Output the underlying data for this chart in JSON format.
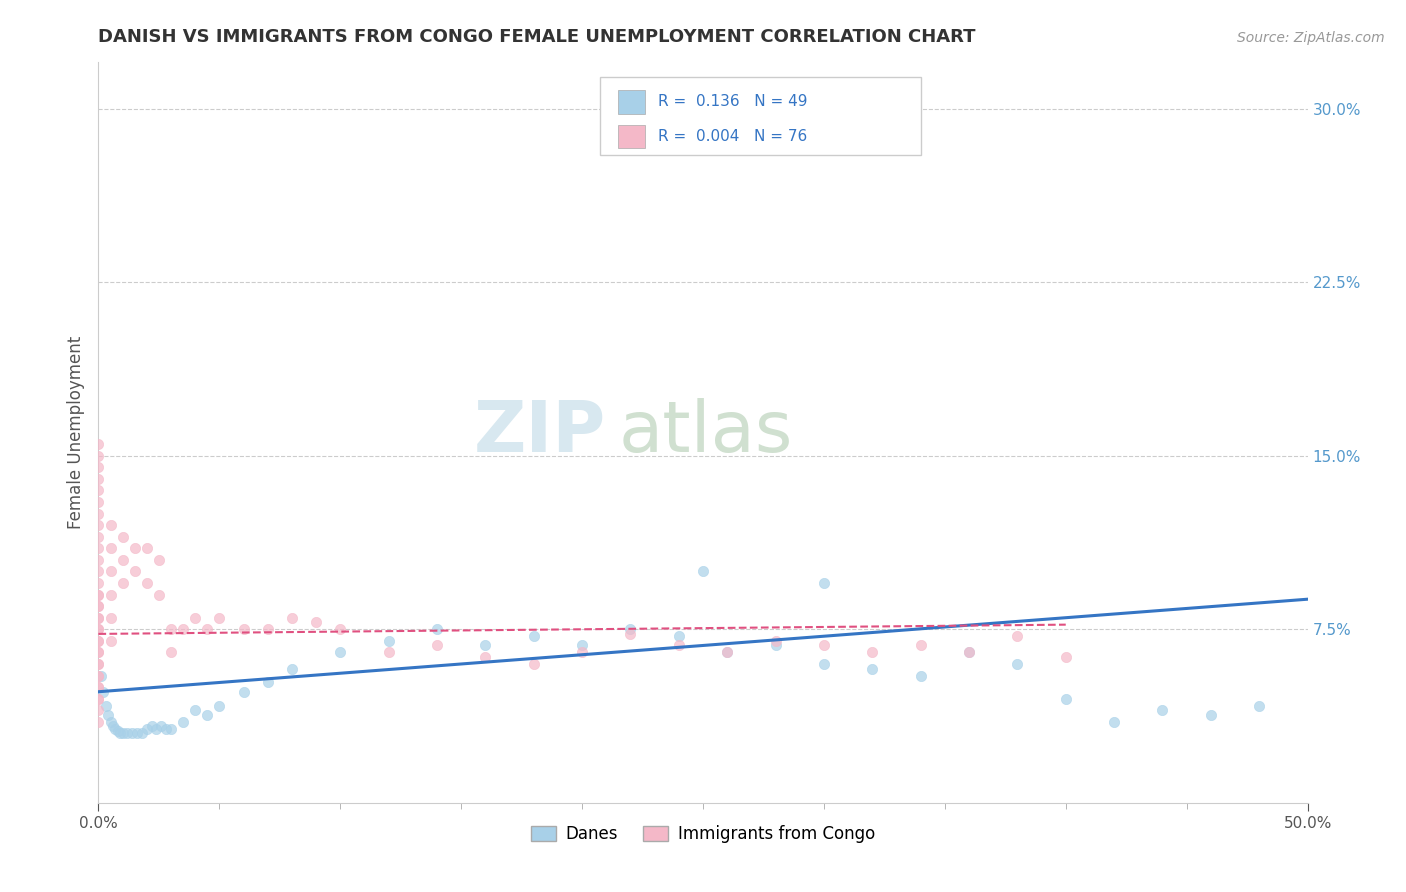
{
  "title": "DANISH VS IMMIGRANTS FROM CONGO FEMALE UNEMPLOYMENT CORRELATION CHART",
  "source": "Source: ZipAtlas.com",
  "ylabel": "Female Unemployment",
  "xlim": [
    0.0,
    0.5
  ],
  "ylim": [
    0.0,
    0.32
  ],
  "ytick_right_labels": [
    "7.5%",
    "15.0%",
    "22.5%",
    "30.0%"
  ],
  "ytick_right_values": [
    0.075,
    0.15,
    0.225,
    0.3
  ],
  "danes_R": "0.136",
  "danes_N": "49",
  "congo_R": "0.004",
  "congo_N": "76",
  "danes_color": "#a8d0e8",
  "congo_color": "#f4b8c8",
  "danes_line_color": "#3575c4",
  "congo_line_color": "#e05080",
  "background_color": "#ffffff",
  "grid_color": "#cccccc",
  "danes_x": [
    0.001,
    0.002,
    0.003,
    0.004,
    0.005,
    0.006,
    0.007,
    0.008,
    0.009,
    0.01,
    0.012,
    0.014,
    0.016,
    0.018,
    0.02,
    0.022,
    0.024,
    0.026,
    0.028,
    0.03,
    0.035,
    0.04,
    0.045,
    0.05,
    0.06,
    0.07,
    0.08,
    0.1,
    0.12,
    0.14,
    0.16,
    0.18,
    0.2,
    0.22,
    0.24,
    0.26,
    0.28,
    0.3,
    0.32,
    0.34,
    0.36,
    0.38,
    0.4,
    0.42,
    0.44,
    0.46,
    0.48,
    0.25,
    0.3
  ],
  "danes_y": [
    0.055,
    0.048,
    0.042,
    0.038,
    0.035,
    0.033,
    0.032,
    0.031,
    0.03,
    0.03,
    0.03,
    0.03,
    0.03,
    0.03,
    0.032,
    0.033,
    0.032,
    0.033,
    0.032,
    0.032,
    0.035,
    0.04,
    0.038,
    0.042,
    0.048,
    0.052,
    0.058,
    0.065,
    0.07,
    0.075,
    0.068,
    0.072,
    0.068,
    0.075,
    0.072,
    0.065,
    0.068,
    0.06,
    0.058,
    0.055,
    0.065,
    0.06,
    0.045,
    0.035,
    0.04,
    0.038,
    0.042,
    0.1,
    0.095
  ],
  "congo_x": [
    0.0,
    0.0,
    0.0,
    0.0,
    0.0,
    0.0,
    0.0,
    0.0,
    0.0,
    0.0,
    0.0,
    0.0,
    0.0,
    0.0,
    0.0,
    0.0,
    0.0,
    0.0,
    0.0,
    0.0,
    0.0,
    0.0,
    0.0,
    0.0,
    0.0,
    0.0,
    0.0,
    0.0,
    0.0,
    0.0,
    0.0,
    0.0,
    0.0,
    0.0,
    0.0,
    0.005,
    0.005,
    0.005,
    0.005,
    0.005,
    0.005,
    0.01,
    0.01,
    0.01,
    0.015,
    0.015,
    0.02,
    0.02,
    0.025,
    0.025,
    0.03,
    0.03,
    0.035,
    0.04,
    0.045,
    0.05,
    0.06,
    0.07,
    0.08,
    0.09,
    0.1,
    0.12,
    0.14,
    0.16,
    0.18,
    0.2,
    0.22,
    0.24,
    0.26,
    0.28,
    0.3,
    0.32,
    0.34,
    0.36,
    0.38,
    0.4
  ],
  "congo_y": [
    0.155,
    0.15,
    0.145,
    0.14,
    0.135,
    0.13,
    0.125,
    0.12,
    0.115,
    0.11,
    0.105,
    0.1,
    0.095,
    0.09,
    0.085,
    0.08,
    0.075,
    0.07,
    0.065,
    0.06,
    0.055,
    0.05,
    0.045,
    0.04,
    0.035,
    0.09,
    0.085,
    0.08,
    0.075,
    0.07,
    0.065,
    0.06,
    0.055,
    0.05,
    0.045,
    0.12,
    0.11,
    0.1,
    0.09,
    0.08,
    0.07,
    0.115,
    0.105,
    0.095,
    0.11,
    0.1,
    0.11,
    0.095,
    0.105,
    0.09,
    0.075,
    0.065,
    0.075,
    0.08,
    0.075,
    0.08,
    0.075,
    0.075,
    0.08,
    0.078,
    0.075,
    0.065,
    0.068,
    0.063,
    0.06,
    0.065,
    0.073,
    0.068,
    0.065,
    0.07,
    0.068,
    0.065,
    0.068,
    0.065,
    0.072,
    0.063
  ],
  "watermark_zip": "ZIP",
  "watermark_atlas": "atlas"
}
